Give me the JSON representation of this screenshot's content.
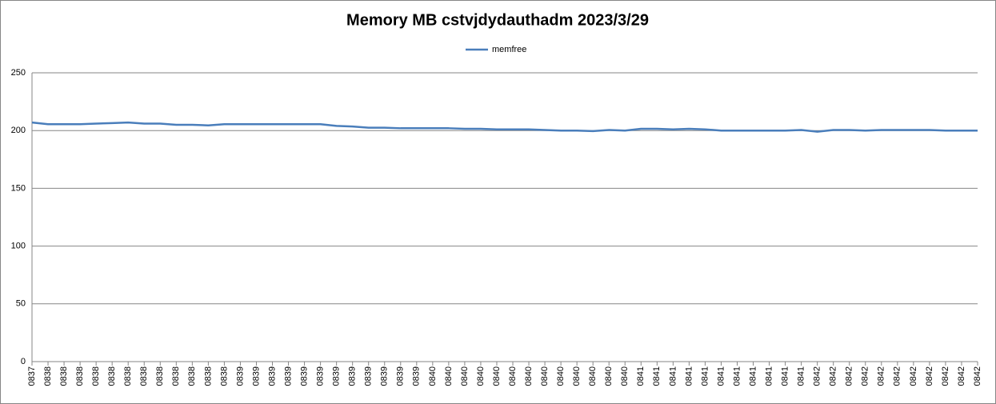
{
  "chart_data": {
    "type": "line",
    "title": "Memory MB cstvjdydauthadm  2023/3/29",
    "categories": [
      "0837",
      "0838",
      "0838",
      "0838",
      "0838",
      "0838",
      "0838",
      "0838",
      "0838",
      "0838",
      "0838",
      "0838",
      "0838",
      "0839",
      "0839",
      "0839",
      "0839",
      "0839",
      "0839",
      "0839",
      "0839",
      "0839",
      "0839",
      "0839",
      "0839",
      "0840",
      "0840",
      "0840",
      "0840",
      "0840",
      "0840",
      "0840",
      "0840",
      "0840",
      "0840",
      "0840",
      "0840",
      "0840",
      "0841",
      "0841",
      "0841",
      "0841",
      "0841",
      "0841",
      "0841",
      "0841",
      "0841",
      "0841",
      "0841",
      "0842",
      "0842",
      "0842",
      "0842",
      "0842",
      "0842",
      "0842",
      "0842",
      "0842",
      "0842",
      "0842"
    ],
    "series": [
      {
        "name": "memfree",
        "color": "#4a7ebb",
        "values": [
          207,
          205.5,
          205.5,
          205.5,
          206,
          206.5,
          207,
          206,
          206,
          205,
          205,
          204.5,
          205.5,
          205.5,
          205.5,
          205.5,
          205.5,
          205.5,
          205.5,
          204,
          203.5,
          202.5,
          202.5,
          202,
          202,
          202,
          202,
          201.5,
          201.5,
          201,
          201,
          201,
          200.5,
          200,
          200,
          199.5,
          200.5,
          200,
          201.5,
          201.5,
          201,
          201.5,
          201,
          200,
          200,
          200,
          200,
          200,
          200.5,
          199,
          200.5,
          200.5,
          200,
          200.5,
          200.5,
          200.5,
          200.5,
          200,
          200,
          200
        ]
      }
    ],
    "ylim": [
      0,
      250
    ],
    "yticks": [
      0,
      50,
      100,
      150,
      200,
      250
    ],
    "grid": true,
    "legend": "top"
  }
}
